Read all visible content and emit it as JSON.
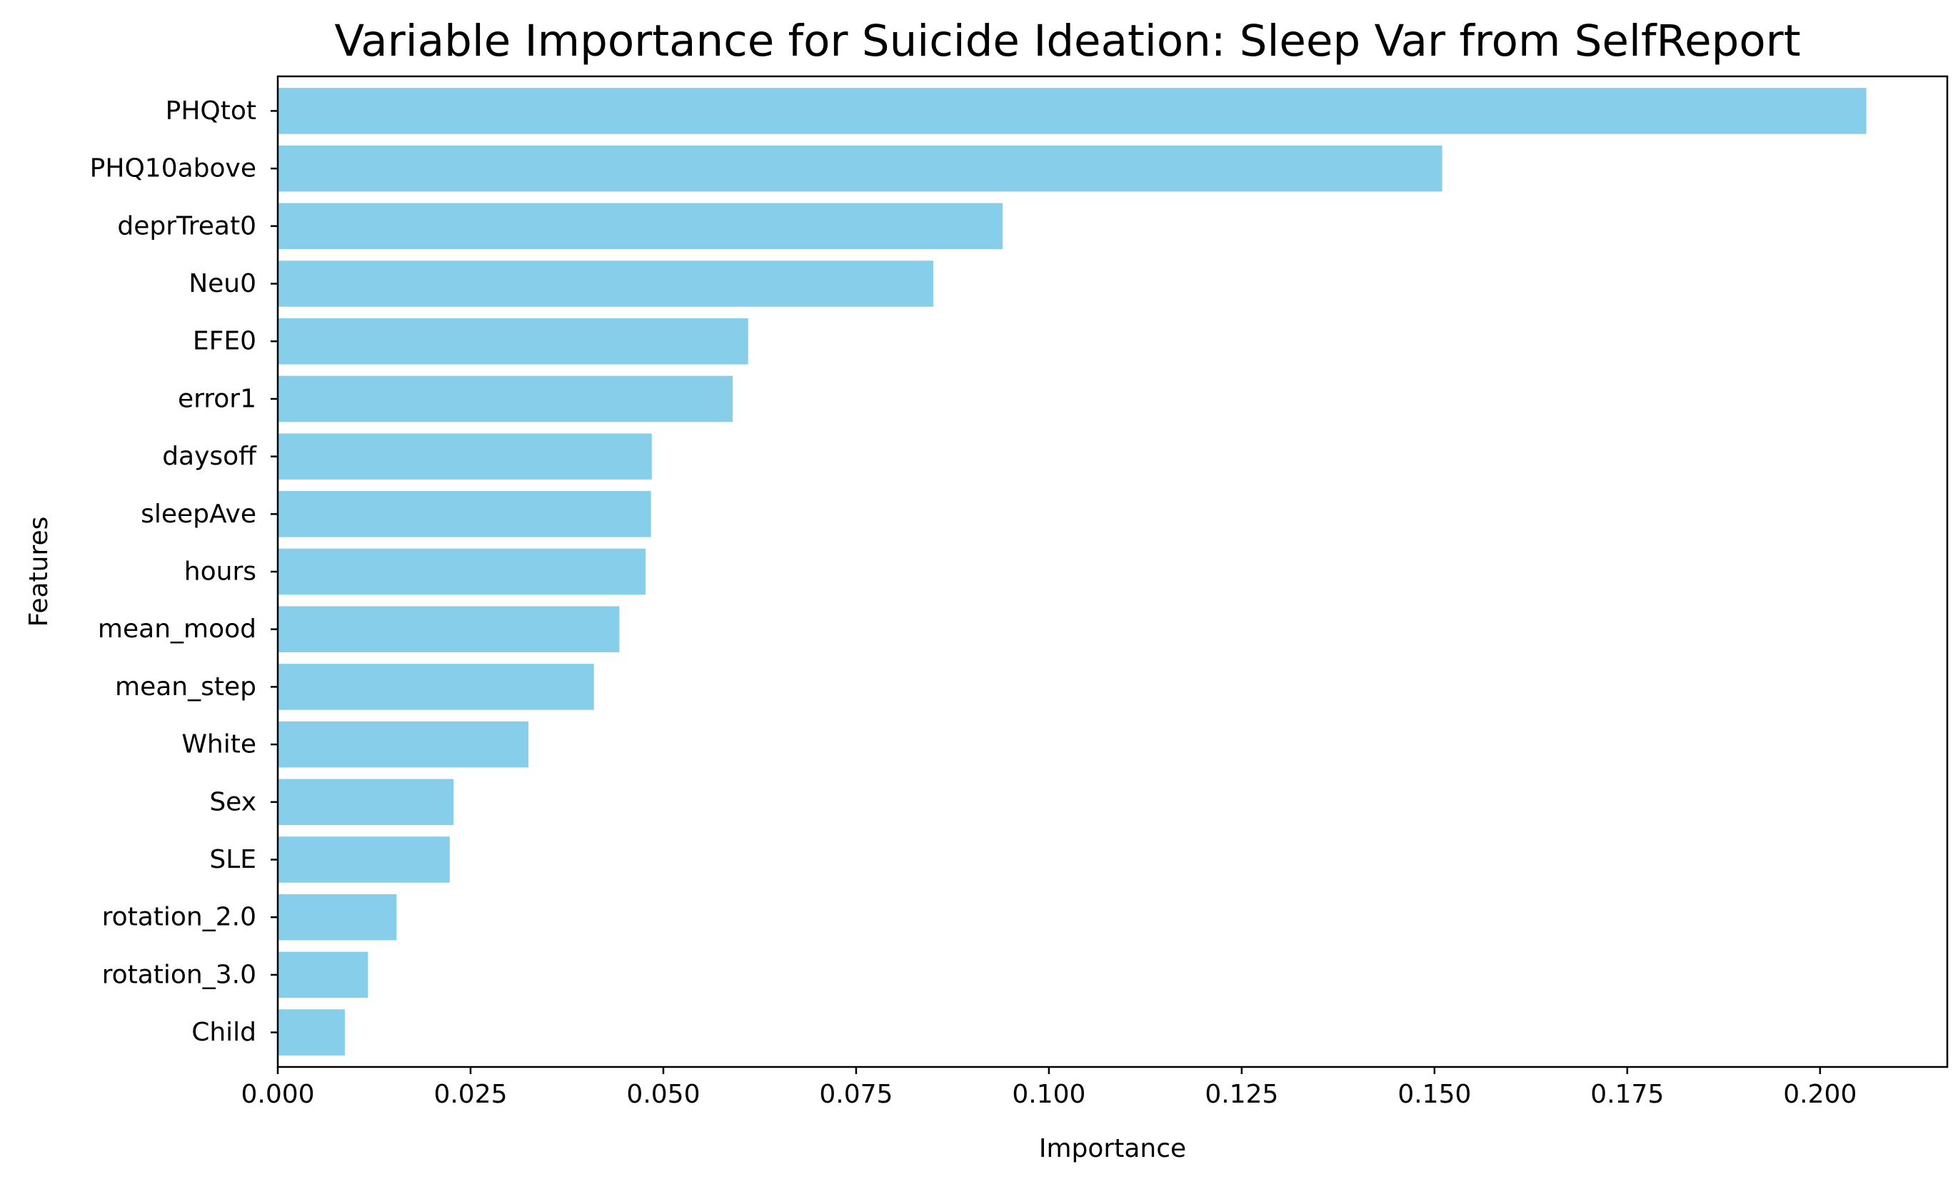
{
  "chart_data": {
    "type": "bar",
    "orientation": "horizontal",
    "title": "Variable Importance for Suicide Ideation: Sleep Var from SelfReport",
    "xlabel": "Importance",
    "ylabel": "Features",
    "categories": [
      "PHQtot",
      "PHQ10above",
      "deprTreat0",
      "Neu0",
      "EFE0",
      "error1",
      "daysoff",
      "sleepAve",
      "hours",
      "mean_mood",
      "mean_step",
      "White",
      "Sex",
      "SLE",
      "rotation_2.0",
      "rotation_3.0",
      "Child"
    ],
    "values": [
      0.206,
      0.151,
      0.094,
      0.085,
      0.061,
      0.059,
      0.0485,
      0.0484,
      0.0477,
      0.0443,
      0.041,
      0.0325,
      0.0228,
      0.0223,
      0.0154,
      0.0117,
      0.0087
    ],
    "xlim": [
      0.0,
      0.2165
    ],
    "xticks": [
      0.0,
      0.025,
      0.05,
      0.075,
      0.1,
      0.125,
      0.15,
      0.175,
      0.2
    ],
    "xtick_labels": [
      "0.000",
      "0.025",
      "0.050",
      "0.075",
      "0.100",
      "0.125",
      "0.150",
      "0.175",
      "0.200"
    ],
    "bar_color": "#87ceeb",
    "grid": false,
    "legend": "none"
  }
}
